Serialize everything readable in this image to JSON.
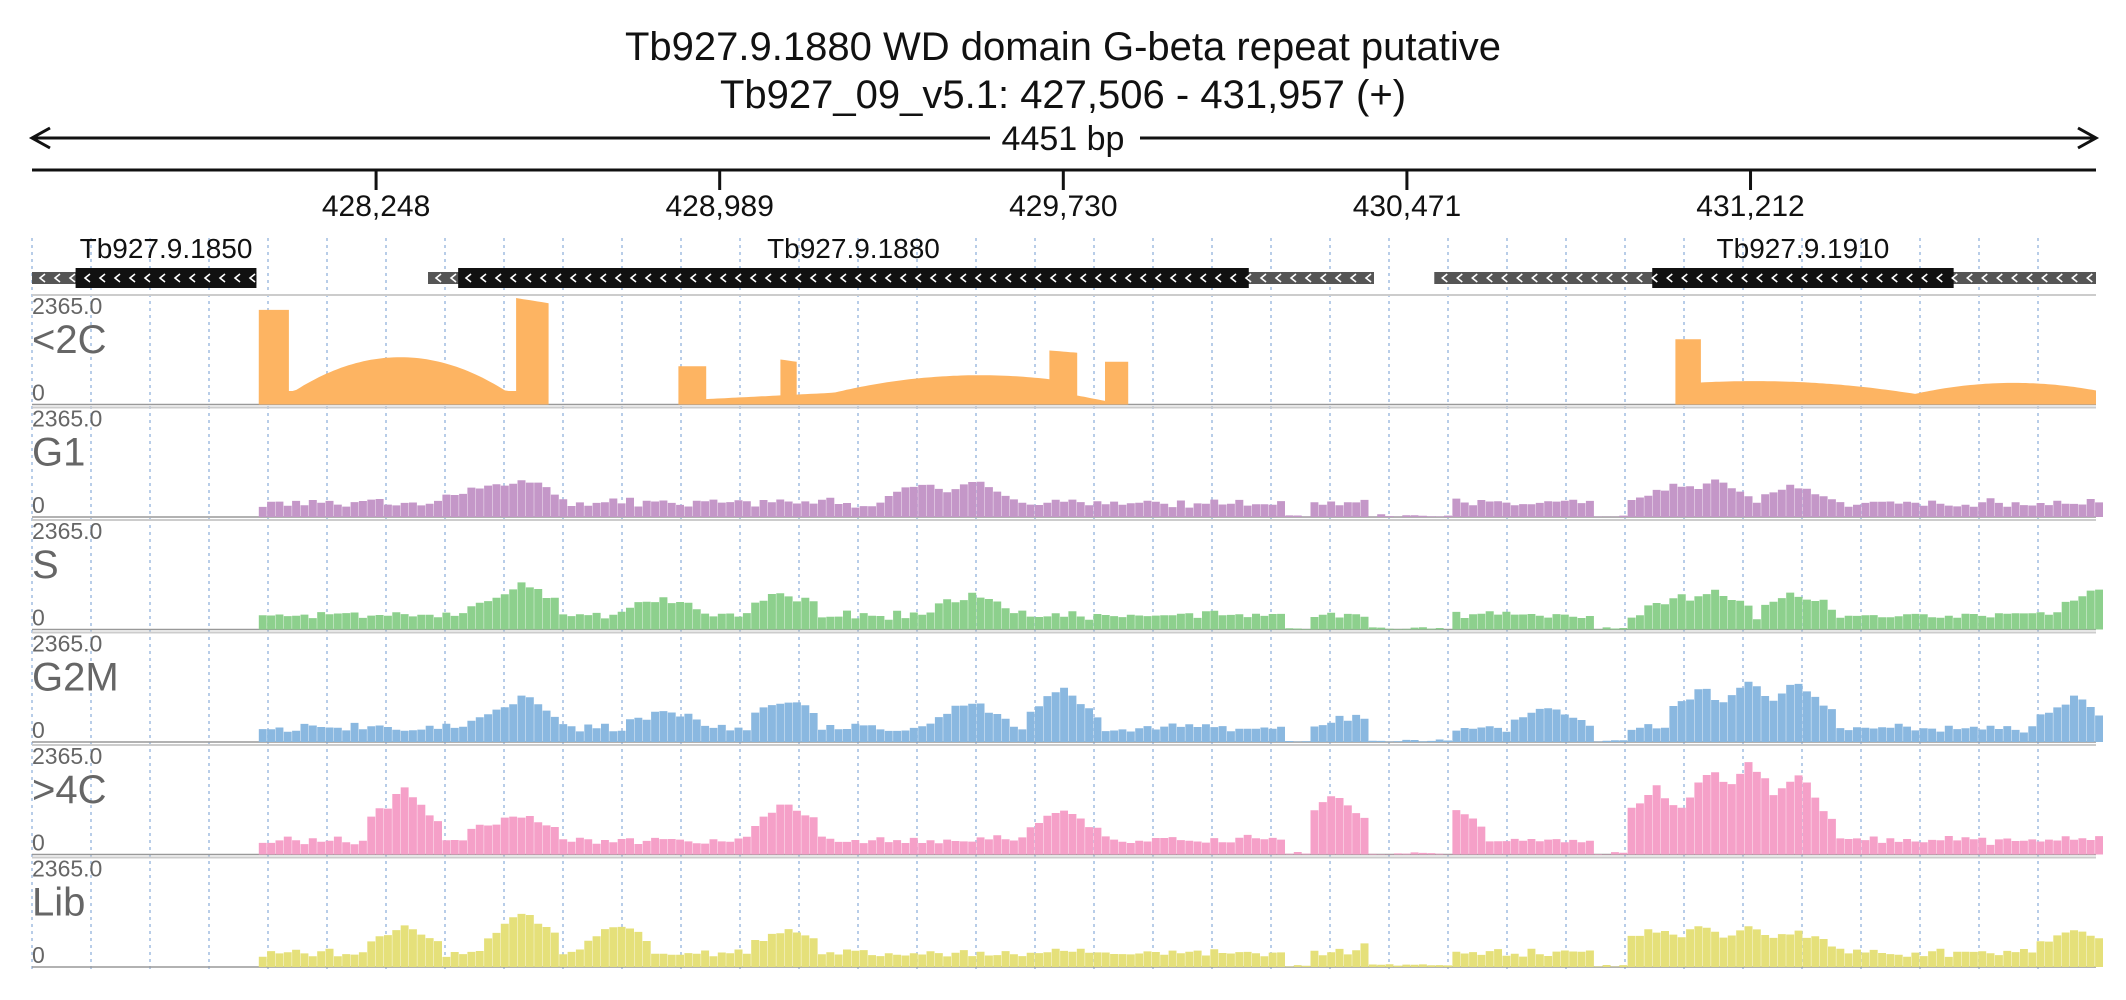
{
  "chart_data": {
    "type": "area",
    "title": "Tb927.9.1880  WD domain  G-beta repeat  putative",
    "subtitle": "Tb927_09_v5.1: 427,506 - 431,957 (+)",
    "span_label": "4451 bp",
    "region": {
      "chrom": "Tb927_09_v5.1",
      "start": 427506,
      "end": 431957,
      "strand": "+"
    },
    "x_ticks": [
      {
        "value": 428248,
        "label": "428,248"
      },
      {
        "value": 428989,
        "label": "428,989"
      },
      {
        "value": 429730,
        "label": "429,730"
      },
      {
        "value": 430471,
        "label": "430,471"
      },
      {
        "value": 431212,
        "label": "431,212"
      }
    ],
    "genes": [
      {
        "name": "Tb927.9.1850",
        "start": 427506,
        "end": 427990,
        "cds_start": 427600,
        "cds_end": 427990,
        "strand": "-"
      },
      {
        "name": "Tb927.9.1880",
        "start": 428360,
        "end": 430400,
        "cds_start": 428425,
        "cds_end": 430130,
        "strand": "-"
      },
      {
        "name": "Tb927.9.1910",
        "start": 430530,
        "end": 431957,
        "cds_start": 431000,
        "cds_end": 431650,
        "strand": "-"
      }
    ],
    "tracks": [
      {
        "name": "<2C",
        "color": "#fdb462",
        "ymax_label": "2365.0",
        "ymin_label": "0",
        "ymax": 2365,
        "segments": [
          {
            "x0": 427995,
            "x1": 428060,
            "y0": 2100,
            "y1": 2100
          },
          {
            "x0": 428060,
            "x1": 428550,
            "y0": 300,
            "y1": 300,
            "peak": 1050,
            "peak_at": 428300
          },
          {
            "x0": 428550,
            "x1": 428620,
            "y0": 2365,
            "y1": 2250
          },
          {
            "x0": 428900,
            "x1": 428960,
            "y0": 850,
            "y1": 850
          },
          {
            "x0": 428960,
            "x1": 429700,
            "y0": 120,
            "y1": 500,
            "peak": 650,
            "peak_at": 429550
          },
          {
            "x0": 429120,
            "x1": 429155,
            "y0": 1000,
            "y1": 950
          },
          {
            "x0": 429700,
            "x1": 429760,
            "y0": 1200,
            "y1": 1150
          },
          {
            "x0": 429760,
            "x1": 429820,
            "y0": 200,
            "y1": 80
          },
          {
            "x0": 429820,
            "x1": 429870,
            "y0": 950,
            "y1": 950
          },
          {
            "x0": 431050,
            "x1": 431105,
            "y0": 1450,
            "y1": 1450
          },
          {
            "x0": 431105,
            "x1": 431957,
            "y0": 100,
            "y1": 80,
            "peak": 520,
            "peak_at": 431220,
            "peak2": 480,
            "peak2_at": 431780
          }
        ]
      },
      {
        "name": "G1",
        "color": "#c497c8",
        "ymax_label": "2365.0",
        "ymin_label": "0",
        "ymax": 2365,
        "profile": "g1"
      },
      {
        "name": "S",
        "color": "#8dd08d",
        "ymax_label": "2365.0",
        "ymin_label": "0",
        "ymax": 2365,
        "profile": "s"
      },
      {
        "name": "G2M",
        "color": "#8ab8e0",
        "ymax_label": "2365.0",
        "ymin_label": "0",
        "ymax": 2365,
        "profile": "g2m"
      },
      {
        "name": ">4C",
        "color": "#f5a0c8",
        "ymax_label": "2365.0",
        "ymin_label": "0",
        "ymax": 2365,
        "profile": "g4c"
      },
      {
        "name": "Lib",
        "color": "#e5e07a",
        "ymax_label": "2365.0",
        "ymin_label": "0",
        "ymax": 2365,
        "profile": "lib"
      }
    ]
  }
}
